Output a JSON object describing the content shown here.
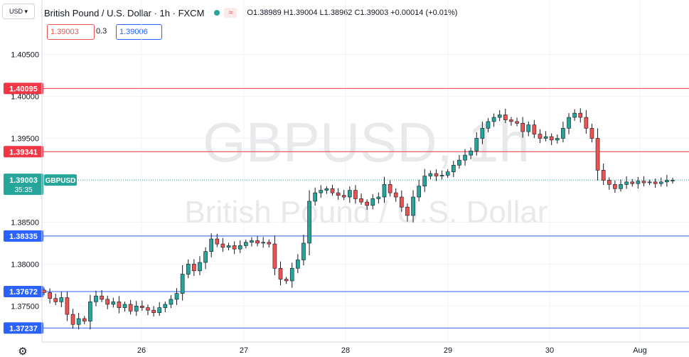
{
  "header": {
    "currency_button": "USD",
    "title": "British Pound / U.S. Dollar · 1h · FXCM",
    "wave_icon": "≈",
    "ohlc": "O1.38989 H1.39004 L1.38962 C1.39003 +0.00014 (+0.01%)",
    "sell_price": "1.39003",
    "spread": "0.3",
    "buy_price": "1.39006"
  },
  "watermark": {
    "symbol": "GBPUSD, 1h",
    "name": "British Pound / U.S. Dollar"
  },
  "colors": {
    "up": "#26a69a",
    "down": "#ef5350",
    "resistance": "#f23645",
    "support": "#2962ff",
    "current": "#26a69a"
  },
  "chart_data": {
    "type": "candlestick",
    "symbol": "GBPUSD",
    "interval": "1h",
    "x_ticks": [
      "26",
      "27",
      "28",
      "29",
      "30",
      "Aug"
    ],
    "y_ticks": [
      "1.40500",
      "1.40000",
      "1.39500",
      "1.38500",
      "1.38000",
      "1.37500"
    ],
    "ylim": [
      1.3707,
      1.4115
    ],
    "levels": [
      {
        "price": 1.40095,
        "label": "1.40095",
        "kind": "resistance"
      },
      {
        "price": 1.39341,
        "label": "1.39341",
        "kind": "resistance"
      },
      {
        "price": 1.38335,
        "label": "1.38335",
        "kind": "support"
      },
      {
        "price": 1.37672,
        "label": "1.37672",
        "kind": "support"
      },
      {
        "price": 1.37237,
        "label": "1.37237",
        "kind": "support"
      }
    ],
    "current": {
      "price": 1.39003,
      "label": "1.39003",
      "countdown": "35:35",
      "tag": "GBPUSD"
    },
    "closes": [
      1.3766,
      1.3759,
      1.3755,
      1.376,
      1.374,
      1.3728,
      1.3735,
      1.3732,
      1.3755,
      1.3762,
      1.3758,
      1.3752,
      1.3755,
      1.3748,
      1.3752,
      1.3744,
      1.375,
      1.3748,
      1.3745,
      1.3742,
      1.3748,
      1.3752,
      1.3758,
      1.3765,
      1.3788,
      1.38,
      1.3792,
      1.3802,
      1.3815,
      1.383,
      1.3824,
      1.382,
      1.3822,
      1.3818,
      1.3822,
      1.3826,
      1.3828,
      1.3825,
      1.3826,
      1.3824,
      1.3795,
      1.3782,
      1.378,
      1.3795,
      1.3805,
      1.3825,
      1.3875,
      1.3885,
      1.3888,
      1.389,
      1.3885,
      1.3882,
      1.388,
      1.3888,
      1.3878,
      1.3874,
      1.387,
      1.3878,
      1.388,
      1.3895,
      1.3885,
      1.388,
      1.3868,
      1.3858,
      1.388,
      1.3893,
      1.3905,
      1.3908,
      1.3905,
      1.3906,
      1.391,
      1.3918,
      1.3924,
      1.393,
      1.3935,
      1.395,
      1.3962,
      1.397,
      1.3975,
      1.3978,
      1.3972,
      1.397,
      1.3968,
      1.3958,
      1.3966,
      1.3955,
      1.395,
      1.3952,
      1.3948,
      1.395,
      1.3962,
      1.3975,
      1.398,
      1.3975,
      1.3962,
      1.395,
      1.3912,
      1.39,
      1.3895,
      1.389,
      1.3895,
      1.3898,
      1.3896,
      1.3899,
      1.3897,
      1.3898,
      1.3896,
      1.3898,
      1.39,
      1.39
    ]
  }
}
